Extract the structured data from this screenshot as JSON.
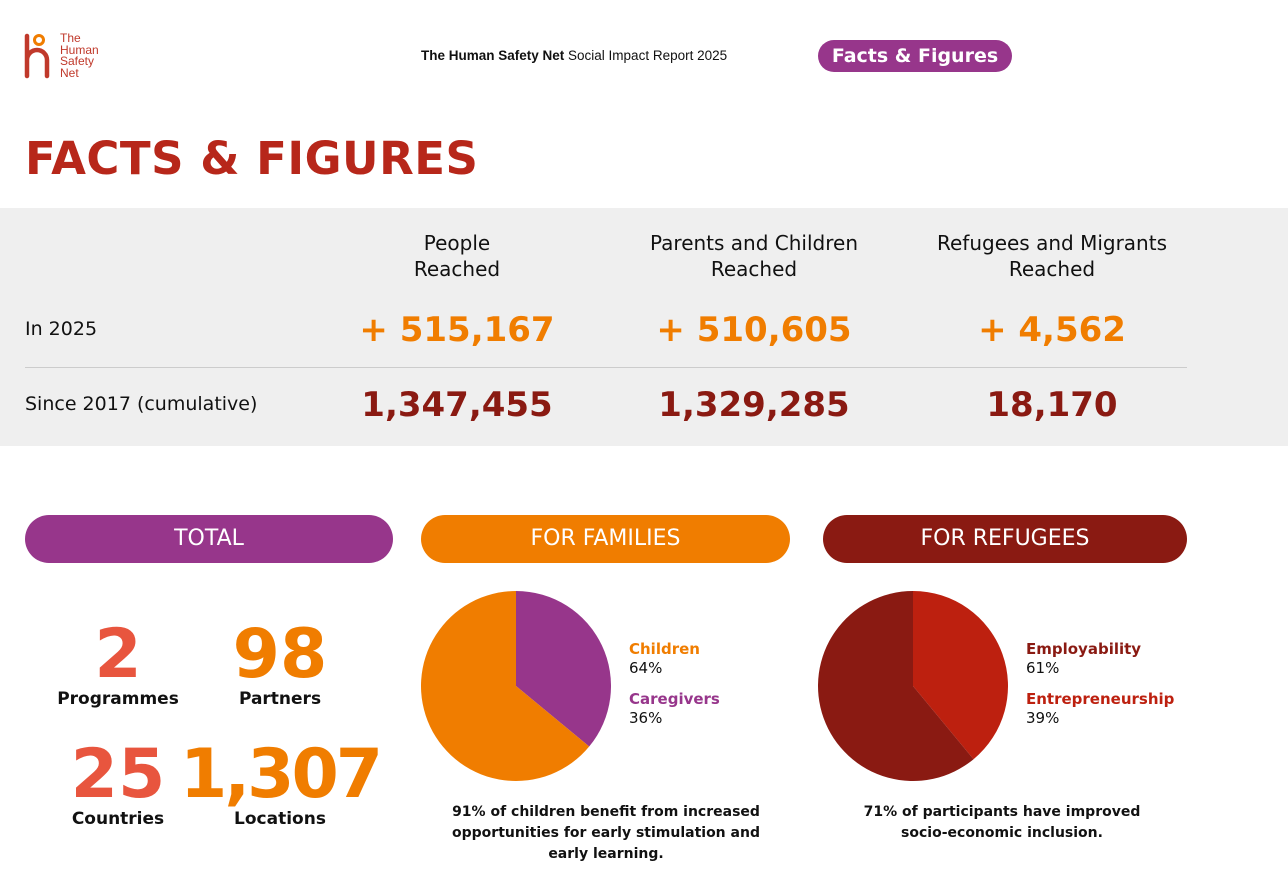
{
  "header": {
    "logo_text": [
      "The",
      "Human",
      "Safety",
      "Net"
    ],
    "title_bold": "The Human Safety Net",
    "title_rest": " Social Impact Report 2025",
    "badge": "Facts & Figures"
  },
  "page_title": "FACTS & FIGURES",
  "summary": {
    "columns": [
      [
        "People",
        "Reached"
      ],
      [
        "Parents and Children",
        "Reached"
      ],
      [
        "Refugees and Migrants",
        "Reached"
      ]
    ],
    "rows": [
      {
        "label": "In 2025",
        "values": [
          "+ 515,167",
          "+ 510,605",
          "+ 4,562"
        ]
      },
      {
        "label": "Since 2017 (cumulative)",
        "values": [
          "1,347,455",
          "1,329,285",
          "18,170"
        ]
      }
    ]
  },
  "total": {
    "title": "TOTAL",
    "stats": [
      {
        "value": "2",
        "label": "Programmes"
      },
      {
        "value": "98",
        "label": "Partners"
      },
      {
        "value": "25",
        "label": "Countries"
      },
      {
        "value": "1,307",
        "label": "Locations"
      }
    ]
  },
  "families": {
    "title": "FOR FAMILIES",
    "caption": [
      "91% of children benefit from increased",
      "opportunities for early stimulation and",
      "early learning."
    ]
  },
  "refugees": {
    "title": "FOR REFUGEES",
    "caption": [
      "71% of participants have improved",
      "socio-economic inclusion."
    ]
  },
  "chart_data": [
    {
      "type": "pie",
      "title": "FOR FAMILIES",
      "slices": [
        {
          "name": "Children",
          "value": 64,
          "label": "64%",
          "color": "#f07d00"
        },
        {
          "name": "Caregivers",
          "value": 36,
          "label": "36%",
          "color": "#97368b"
        }
      ]
    },
    {
      "type": "pie",
      "title": "FOR REFUGEES",
      "slices": [
        {
          "name": "Employability",
          "value": 61,
          "label": "61%",
          "color": "#8a1a12"
        },
        {
          "name": "Entrepreneurship",
          "value": 39,
          "label": "39%",
          "color": "#bd200f"
        }
      ]
    }
  ],
  "colors": {
    "purple": "#97368b",
    "orange": "#f07d00",
    "dark_red": "#8a1a12",
    "red": "#bd200f",
    "title_red": "#b7271a"
  }
}
